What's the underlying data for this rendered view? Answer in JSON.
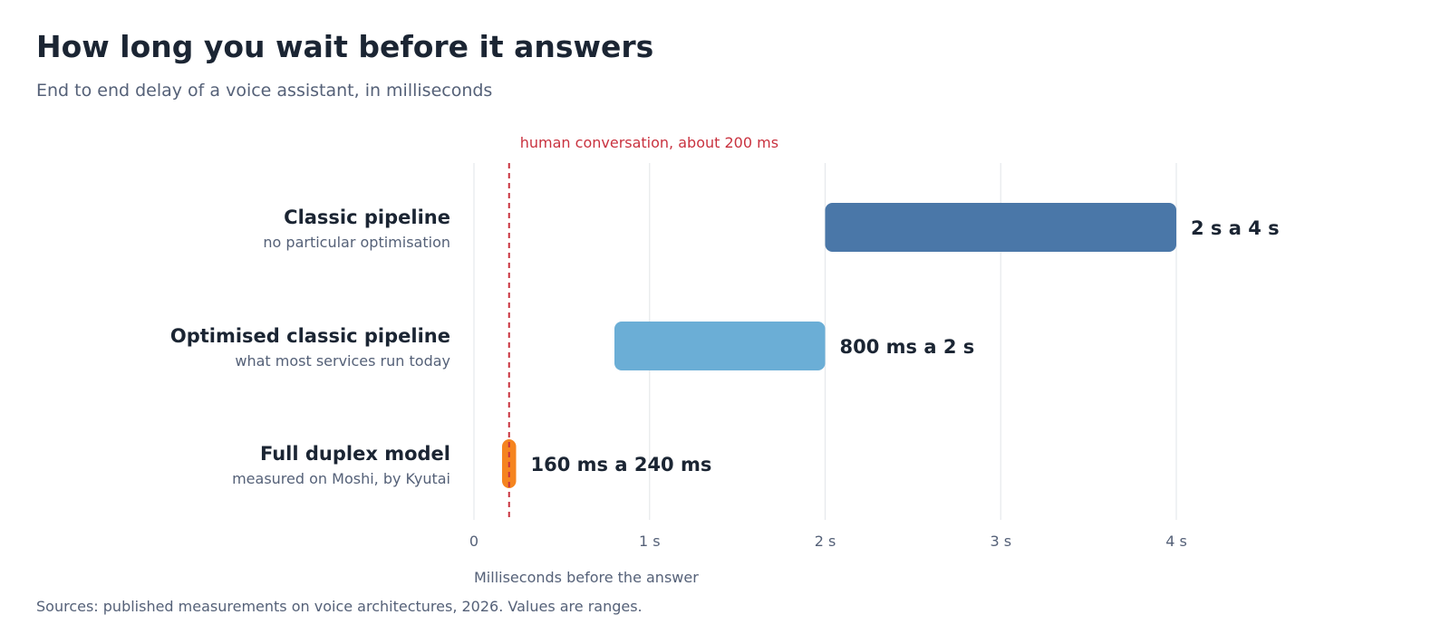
{
  "header": {
    "title": "How long you wait before it answers",
    "subtitle": "End to end delay of a voice assistant, in milliseconds"
  },
  "footer": {
    "source": "Sources: published measurements on voice architectures, 2026. Values are ranges."
  },
  "chart_data": {
    "type": "bar",
    "orientation": "horizontal-range",
    "xlabel": "Milliseconds before the answer",
    "xlim": [
      0,
      4000
    ],
    "x_ticks": [
      {
        "value": 0,
        "label": "0"
      },
      {
        "value": 1000,
        "label": "1 s"
      },
      {
        "value": 2000,
        "label": "2 s"
      },
      {
        "value": 3000,
        "label": "3 s"
      },
      {
        "value": 4000,
        "label": "4 s"
      }
    ],
    "grid": "vertical",
    "reference_line": {
      "value": 200,
      "label": "human conversation, about 200 ms",
      "color": "#c9323f"
    },
    "categories": [
      {
        "name": "Classic pipeline",
        "description": "no particular optimisation",
        "low": 2000,
        "high": 4000,
        "value_label": "2 s a 4 s",
        "color": "#4a77a8"
      },
      {
        "name": "Optimised classic pipeline",
        "description": "what most services run today",
        "low": 800,
        "high": 2000,
        "value_label": "800 ms a 2 s",
        "color": "#6baed6"
      },
      {
        "name": "Full duplex model",
        "description": "measured on Moshi, by Kyutai",
        "low": 160,
        "high": 240,
        "value_label": "160 ms a 240 ms",
        "color": "#f5841f"
      }
    ]
  }
}
